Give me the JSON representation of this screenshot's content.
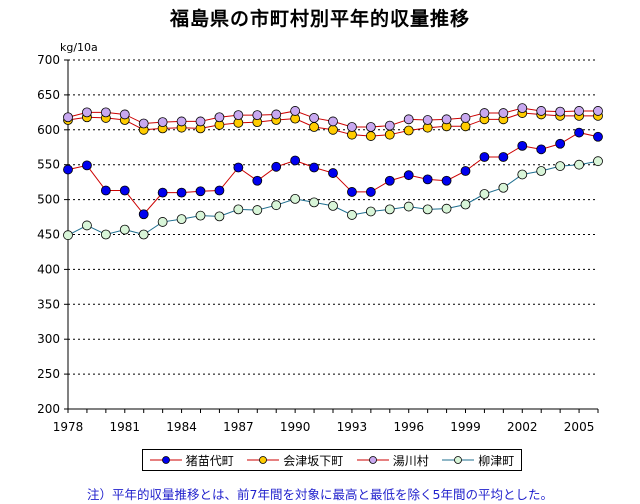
{
  "chart_data": {
    "type": "line",
    "title": "福島県の市町村別平年的収量推移",
    "ylabel": "kg/10a",
    "xlabel": "",
    "ylim": [
      200,
      700
    ],
    "yticks": [
      200,
      250,
      300,
      350,
      400,
      450,
      500,
      550,
      600,
      650,
      700
    ],
    "xlim": [
      1978,
      2006
    ],
    "xtick_labels": [
      "1978",
      "1981",
      "1984",
      "1987",
      "1990",
      "1993",
      "1996",
      "1999",
      "2002",
      "2005"
    ],
    "x": [
      1978,
      1979,
      1980,
      1981,
      1982,
      1983,
      1984,
      1985,
      1986,
      1987,
      1988,
      1989,
      1990,
      1991,
      1992,
      1993,
      1994,
      1995,
      1996,
      1997,
      1998,
      1999,
      2000,
      2001,
      2002,
      2003,
      2004,
      2005,
      2006
    ],
    "series": [
      {
        "name": "猪苗代町",
        "line_color": "#cc0000",
        "marker_color": "#0000ee",
        "values": [
          543,
          549,
          513,
          513,
          479,
          510,
          510,
          512,
          513,
          546,
          527,
          547,
          556,
          546,
          538,
          511,
          511,
          527,
          535,
          529,
          527,
          541,
          561,
          561,
          577,
          572,
          580,
          596,
          590
        ]
      },
      {
        "name": "会津坂下町",
        "line_color": "#cc0000",
        "marker_color": "#ffcc00",
        "values": [
          614,
          618,
          617,
          614,
          600,
          602,
          603,
          602,
          607,
          610,
          611,
          614,
          616,
          604,
          600,
          593,
          591,
          593,
          599,
          603,
          605,
          605,
          615,
          615,
          624,
          622,
          620,
          620,
          620
        ]
      },
      {
        "name": "湯川村",
        "line_color": "#cc0000",
        "marker_color": "#c8a8f0",
        "values": [
          618,
          625,
          625,
          622,
          609,
          611,
          612,
          612,
          618,
          621,
          621,
          622,
          627,
          617,
          612,
          604,
          604,
          606,
          615,
          614,
          615,
          617,
          624,
          624,
          631,
          627,
          626,
          627,
          627
        ]
      },
      {
        "name": "柳津町",
        "line_color": "#1f6f8f",
        "marker_color": "#d8f5d8",
        "values": [
          449,
          463,
          450,
          457,
          450,
          468,
          472,
          477,
          476,
          486,
          485,
          492,
          501,
          496,
          491,
          478,
          483,
          486,
          490,
          486,
          487,
          493,
          508,
          517,
          536,
          541,
          548,
          550,
          555
        ]
      }
    ]
  },
  "footnote": "注）平年的収量推移とは、前7年間を対象に最高と最低を除く5年間の平均とした。"
}
